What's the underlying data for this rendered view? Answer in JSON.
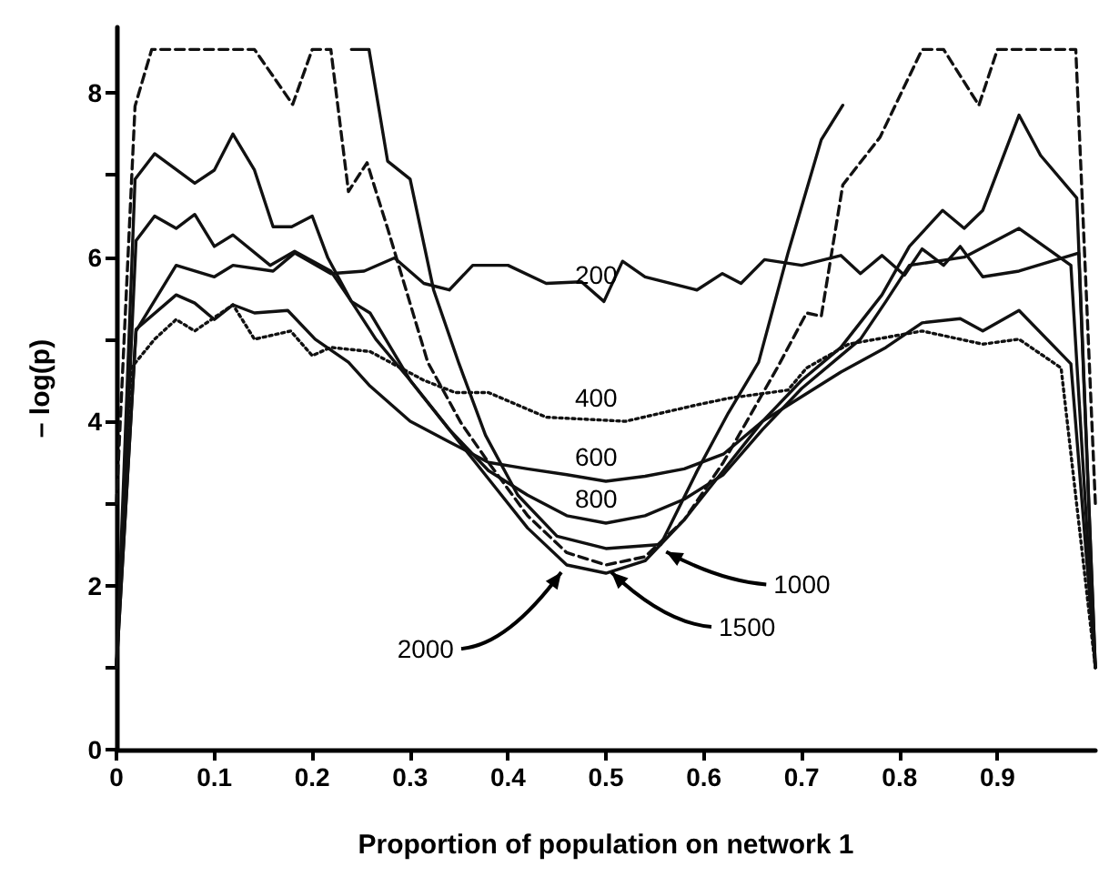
{
  "chart_data": {
    "type": "line",
    "xlabel": "Proportion of population on network 1",
    "ylabel": "– log(p)",
    "xlim": [
      0,
      1
    ],
    "xticks": [
      0,
      0.1,
      0.2,
      0.3,
      0.4,
      0.5,
      0.6,
      0.7,
      0.8,
      0.9
    ],
    "ylim": [
      0,
      8.8
    ],
    "yticks": [
      0,
      {
        "value": 1,
        "label": null
      },
      2,
      {
        "value": 3,
        "label": null
      },
      4,
      {
        "value": 5,
        "label": null
      },
      6,
      {
        "value": 7,
        "label": null
      },
      8
    ],
    "series": [
      {
        "color": "#111111",
        "line_style": "solid",
        "x": [
          0,
          0.02,
          0.061,
          0.1,
          0.119,
          0.16,
          0.182,
          0.219,
          0.253,
          0.284,
          0.314,
          0.34,
          0.364,
          0.4,
          0.439,
          0.475,
          0.498,
          0.517,
          0.54,
          0.593,
          0.619,
          0.638,
          0.662,
          0.7,
          0.74,
          0.76,
          0.782,
          0.805,
          0.823,
          0.845,
          0.862,
          0.885,
          0.922,
          0.983,
          1.0
        ],
        "values": [
          1.0,
          5.1,
          5.9,
          5.76,
          5.9,
          5.83,
          6.05,
          5.8,
          5.83,
          5.99,
          5.68,
          5.6,
          5.9,
          5.9,
          5.68,
          5.7,
          5.46,
          5.95,
          5.76,
          5.6,
          5.8,
          5.68,
          5.97,
          5.9,
          6.02,
          5.8,
          6.02,
          5.78,
          6.1,
          5.9,
          6.13,
          5.76,
          5.83,
          6.05,
          1.0
        ]
      },
      {
        "color": "#111111",
        "line_style": "dotted",
        "x": [
          0,
          0.015,
          0.039,
          0.061,
          0.08,
          0.119,
          0.141,
          0.178,
          0.2,
          0.219,
          0.259,
          0.314,
          0.346,
          0.38,
          0.439,
          0.52,
          0.593,
          0.625,
          0.686,
          0.705,
          0.748,
          0.823,
          0.885,
          0.922,
          0.965,
          1.0
        ],
        "values": [
          1.0,
          4.65,
          5.0,
          5.24,
          5.1,
          5.42,
          5.0,
          5.1,
          4.8,
          4.9,
          4.85,
          4.5,
          4.35,
          4.35,
          4.05,
          4.0,
          4.2,
          4.28,
          4.38,
          4.65,
          4.94,
          5.1,
          4.94,
          5.0,
          4.65,
          1.0
        ]
      },
      {
        "color": "#111111",
        "line_style": "solid",
        "x": [
          0,
          0.02,
          0.061,
          0.08,
          0.1,
          0.119,
          0.141,
          0.175,
          0.203,
          0.237,
          0.259,
          0.3,
          0.34,
          0.38,
          0.42,
          0.46,
          0.5,
          0.54,
          0.58,
          0.62,
          0.66,
          0.7,
          0.74,
          0.786,
          0.823,
          0.862,
          0.885,
          0.922,
          0.975,
          1.0
        ],
        "values": [
          1.0,
          5.12,
          5.54,
          5.44,
          5.24,
          5.42,
          5.32,
          5.35,
          5.0,
          4.72,
          4.43,
          4.0,
          3.75,
          3.5,
          3.42,
          3.35,
          3.27,
          3.33,
          3.42,
          3.6,
          4.0,
          4.3,
          4.6,
          4.9,
          5.2,
          5.25,
          5.1,
          5.35,
          4.7,
          1.0
        ]
      },
      {
        "color": "#111111",
        "line_style": "solid",
        "x": [
          0,
          0.02,
          0.039,
          0.061,
          0.08,
          0.1,
          0.119,
          0.157,
          0.182,
          0.219,
          0.24,
          0.259,
          0.3,
          0.34,
          0.38,
          0.42,
          0.46,
          0.5,
          0.54,
          0.58,
          0.62,
          0.66,
          0.7,
          0.74,
          0.76,
          0.786,
          0.81,
          0.866,
          0.922,
          0.975,
          1.0
        ],
        "values": [
          1.0,
          6.2,
          6.5,
          6.35,
          6.52,
          6.13,
          6.27,
          5.9,
          6.07,
          5.83,
          5.46,
          5.32,
          4.5,
          3.9,
          3.4,
          3.1,
          2.85,
          2.76,
          2.85,
          3.05,
          3.35,
          3.9,
          4.4,
          4.8,
          5.0,
          5.46,
          5.9,
          6.0,
          6.35,
          5.9,
          1.0
        ]
      },
      {
        "color": "#111111",
        "line_style": "solid",
        "x": [
          0.24,
          0.258,
          0.277,
          0.3,
          0.324,
          0.35,
          0.377,
          0.41,
          0.45,
          0.5,
          0.556,
          0.593,
          0.625,
          0.656,
          0.686,
          0.72,
          0.742
        ],
        "values": [
          8.53,
          8.53,
          7.17,
          6.95,
          5.6,
          4.7,
          3.83,
          3.1,
          2.6,
          2.45,
          2.5,
          3.39,
          4.1,
          4.72,
          6.05,
          7.43,
          7.85
        ]
      },
      {
        "color": "#111111",
        "line_style": "dashed",
        "x": [
          0,
          0.019,
          0.036,
          0.141,
          0.18,
          0.2,
          0.219,
          0.237,
          0.256,
          0.277,
          0.318,
          0.352,
          0.38,
          0.42,
          0.46,
          0.5,
          0.54,
          0.58,
          0.62,
          0.675,
          0.705,
          0.72,
          0.742,
          0.78,
          0.823,
          0.845,
          0.881,
          0.9,
          0.98,
          1.0
        ],
        "values": [
          3.0,
          7.84,
          8.53,
          8.53,
          7.86,
          8.53,
          8.53,
          6.8,
          7.15,
          6.35,
          4.72,
          3.98,
          3.5,
          2.85,
          2.4,
          2.25,
          2.35,
          2.8,
          3.5,
          4.65,
          5.32,
          5.28,
          6.88,
          7.46,
          8.53,
          8.53,
          7.85,
          8.53,
          8.53,
          3.0
        ]
      },
      {
        "color": "#111111",
        "line_style": "solid",
        "x": [
          0,
          0.019,
          0.039,
          0.08,
          0.1,
          0.119,
          0.141,
          0.16,
          0.179,
          0.2,
          0.216,
          0.24,
          0.265,
          0.3,
          0.34,
          0.38,
          0.42,
          0.46,
          0.5,
          0.54,
          0.58,
          0.62,
          0.66,
          0.7,
          0.74,
          0.782,
          0.81,
          0.844,
          0.866,
          0.885,
          0.922,
          0.944,
          0.981,
          1.0
        ],
        "values": [
          1.0,
          6.95,
          7.26,
          6.9,
          7.06,
          7.5,
          7.06,
          6.37,
          6.37,
          6.5,
          5.99,
          5.46,
          5.0,
          4.5,
          3.9,
          3.3,
          2.7,
          2.25,
          2.15,
          2.3,
          2.8,
          3.4,
          4.0,
          4.5,
          4.9,
          5.54,
          6.13,
          6.57,
          6.35,
          6.57,
          7.73,
          7.24,
          6.72,
          1.0
        ]
      }
    ],
    "annotations": [
      {
        "text": "200",
        "x": 0.49,
        "y": 5.5
      },
      {
        "text": "400",
        "x": 0.49,
        "y": 4.0
      },
      {
        "text": "600",
        "x": 0.49,
        "y": 3.28
      },
      {
        "text": "800",
        "x": 0.49,
        "y": 2.77
      },
      {
        "text": "1000",
        "x": 0.556,
        "y": 2.5
      },
      {
        "text": "1500",
        "x": 0.5,
        "y": 2.25
      },
      {
        "text": "2000",
        "x": 0.46,
        "y": 2.25
      }
    ]
  }
}
